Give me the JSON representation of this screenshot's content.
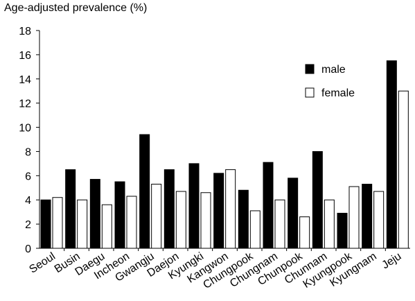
{
  "chart_data": {
    "type": "bar",
    "ylabel": "Age-adjusted prevalence (%)",
    "xlabel": "",
    "ylim": [
      0,
      18
    ],
    "yticks": [
      0,
      2,
      4,
      6,
      8,
      10,
      12,
      14,
      16,
      18
    ],
    "categories": [
      "Seoul",
      "Busin",
      "Daegu",
      "Incheon",
      "Gwangju",
      "Daejon",
      "Kyungki",
      "Kangwon",
      "Chungpook",
      "Chungnam",
      "Chunpook",
      "Chunnam",
      "Kyungpook",
      "Kyungnam",
      "Jeju"
    ],
    "series": [
      {
        "name": "male",
        "color": "#000000",
        "values": [
          4.0,
          6.5,
          5.7,
          5.5,
          9.4,
          6.5,
          7.0,
          6.2,
          4.8,
          7.1,
          5.8,
          8.0,
          2.9,
          5.3,
          15.5
        ]
      },
      {
        "name": "female",
        "color": "#ffffff",
        "values": [
          4.2,
          4.0,
          3.6,
          4.3,
          5.3,
          4.7,
          4.6,
          6.5,
          3.1,
          4.0,
          2.6,
          4.0,
          5.1,
          4.7,
          13.0
        ]
      }
    ],
    "grid": false,
    "legend_position": "right"
  }
}
